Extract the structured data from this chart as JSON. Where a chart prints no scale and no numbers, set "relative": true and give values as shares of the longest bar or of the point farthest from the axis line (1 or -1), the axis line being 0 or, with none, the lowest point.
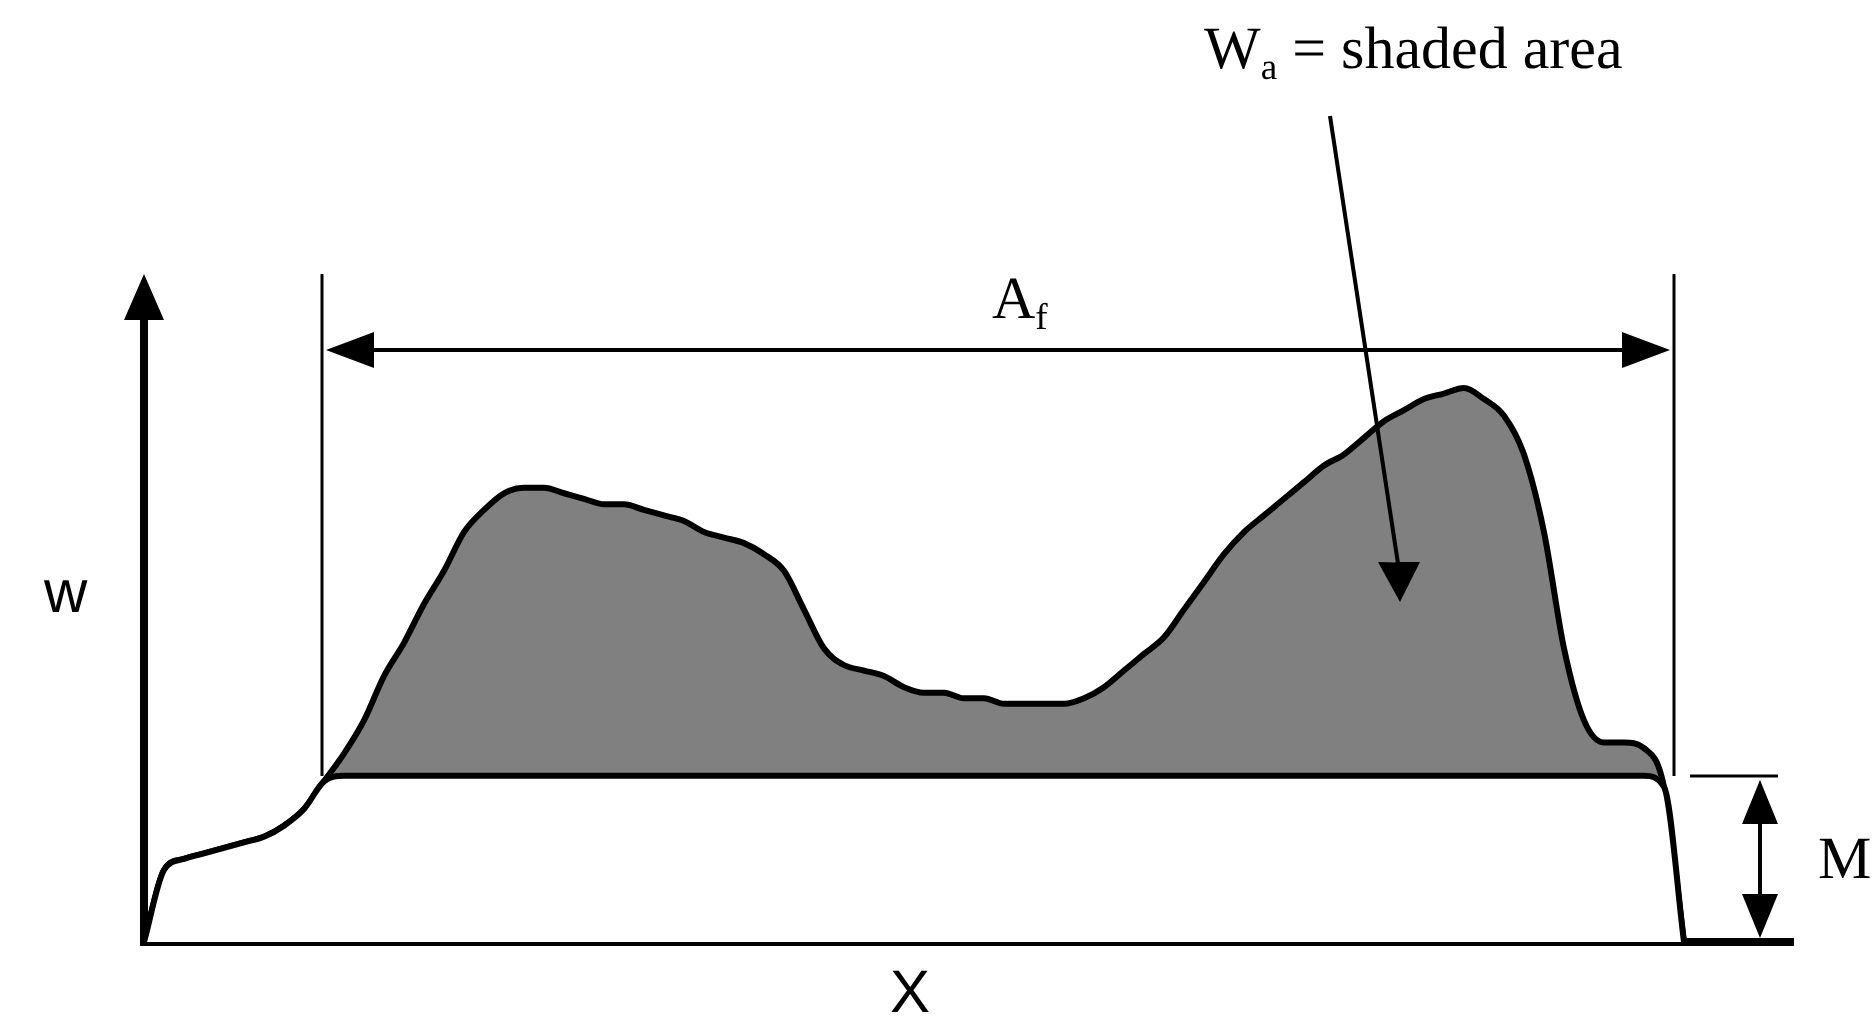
{
  "chart_data": {
    "type": "area",
    "xlabel": "X",
    "ylabel": "w",
    "relative": true,
    "stacked": true,
    "categories": [
      null,
      null,
      null,
      null,
      null,
      null,
      null,
      null,
      null,
      null,
      null,
      null,
      null,
      null,
      null,
      null,
      null,
      null,
      null,
      null,
      null,
      null,
      null,
      null,
      null,
      null,
      null,
      null,
      null,
      null,
      null,
      null,
      null,
      null,
      null,
      null,
      null,
      null,
      null,
      null,
      null,
      null,
      null,
      null,
      null,
      null,
      null,
      null,
      null,
      null,
      null,
      null,
      null,
      null,
      null,
      null,
      null,
      null,
      null,
      null,
      null,
      null,
      null,
      null,
      null,
      null,
      null,
      null,
      null,
      null,
      null,
      null,
      null,
      null,
      null,
      null,
      null,
      null
    ],
    "series": [
      {
        "color": "#ffffff",
        "values": [
          0,
          0.13,
          0.15,
          0.16,
          0.17,
          0.18,
          0.19,
          0.21,
          0.24,
          0.29,
          0.3,
          0.3,
          0.3,
          0.3,
          0.3,
          0.3,
          0.3,
          0.3,
          0.3,
          0.3,
          0.3,
          0.3,
          0.3,
          0.3,
          0.3,
          0.3,
          0.3,
          0.3,
          0.3,
          0.3,
          0.3,
          0.3,
          0.3,
          0.3,
          0.3,
          0.3,
          0.3,
          0.3,
          0.3,
          0.3,
          0.3,
          0.3,
          0.3,
          0.3,
          0.3,
          0.3,
          0.3,
          0.3,
          0.3,
          0.3,
          0.3,
          0.3,
          0.3,
          0.3,
          0.3,
          0.3,
          0.3,
          0.3,
          0.3,
          0.3,
          0.3,
          0.3,
          0.3,
          0.3,
          0.3,
          0.3,
          0.3,
          0.3,
          0.3,
          0.3,
          0.3,
          0.3,
          0.3,
          0.3,
          0.3,
          0.3,
          0.28,
          0
        ]
      },
      {
        "color": "#808080",
        "values": [
          0,
          0,
          0,
          0,
          0,
          0,
          0,
          0,
          0,
          0,
          0.04,
          0.1,
          0.18,
          0.24,
          0.31,
          0.37,
          0.44,
          0.48,
          0.51,
          0.52,
          0.52,
          0.51,
          0.5,
          0.49,
          0.49,
          0.48,
          0.47,
          0.46,
          0.44,
          0.43,
          0.42,
          0.4,
          0.37,
          0.3,
          0.23,
          0.2,
          0.19,
          0.18,
          0.16,
          0.15,
          0.15,
          0.14,
          0.14,
          0.13,
          0.13,
          0.13,
          0.13,
          0.14,
          0.16,
          0.19,
          0.22,
          0.25,
          0.3,
          0.35,
          0.4,
          0.44,
          0.47,
          0.5,
          0.53,
          0.56,
          0.58,
          0.61,
          0.64,
          0.66,
          0.68,
          0.69,
          0.7,
          0.68,
          0.65,
          0.58,
          0.44,
          0.23,
          0.1,
          0.06,
          0.06,
          0.05,
          0,
          0
        ]
      }
    ],
    "annotations": [
      "W$_{a}$ = shaded area",
      "A$_{f}$",
      "M"
    ]
  }
}
